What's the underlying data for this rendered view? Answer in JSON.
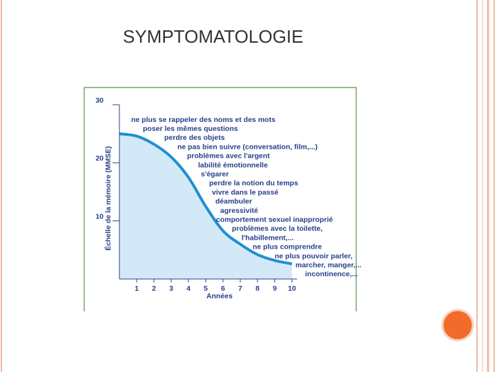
{
  "title": "SYMPTOMATOLOGIE",
  "chart_data": {
    "type": "area",
    "x_label": "Années",
    "y_label": "Échelle de la mémoire (MMSE)",
    "x": [
      0,
      1,
      2,
      3,
      4,
      5,
      6,
      7,
      8,
      9,
      10
    ],
    "values": [
      25,
      24.6,
      23.2,
      21,
      17.5,
      12.5,
      8.3,
      6,
      4.2,
      3.2,
      2.6
    ],
    "color": "#1f8fd0",
    "fill_color": "#d3e9f8",
    "xlim": [
      0,
      10.3
    ],
    "xticks": [
      1,
      2,
      3,
      4,
      5,
      6,
      7,
      8,
      9,
      10
    ],
    "ylim": [
      0,
      30
    ],
    "yticks": [
      10,
      20,
      30
    ],
    "annotations": [
      "ne plus se rappeler des noms et des mots",
      "poser les mêmes questions",
      "perdre des objets",
      "ne pas bien suivre (conversation, film,...)",
      "problèmes avec l'argent",
      "labilité émotionnelle",
      "s'égarer",
      "perdre la notion du temps",
      "vivre dans le passé",
      "déambuler",
      "agressivité",
      "comportement sexuel inapproprié",
      "problèmes avec la toilette,",
      "l'habillement,...",
      "ne plus comprendre",
      "ne plus pouvoir parler,",
      "marcher, manger,...",
      "incontinence,..."
    ]
  }
}
